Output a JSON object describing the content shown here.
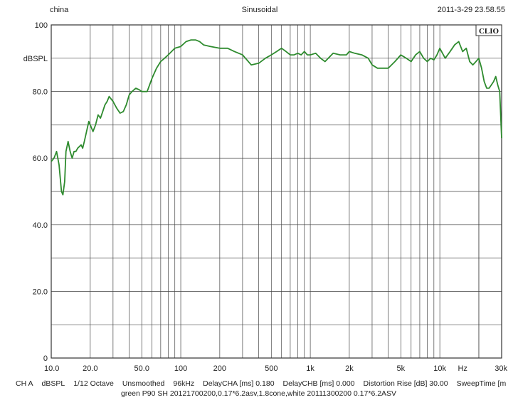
{
  "header": {
    "left": "china",
    "center": "Sinusoidal",
    "right": "2011-3-29 23.58.55"
  },
  "brand_label": "CLIO",
  "footer": {
    "settings": [
      "CH A",
      "dBSPL",
      "1/12 Octave",
      "Unsmoothed",
      "96kHz",
      "DelayCHA [ms] 0.180",
      "DelayCHB [ms] 0.000",
      "Distortion Rise [dB] 30.00",
      "SweepTime [m"
    ],
    "legend": "green P90 SH 20121700200,0.17*6.2asv,1.8cone,white 20111300200 0.17*6.2ASV"
  },
  "colors": {
    "curve": "#2e8b2e",
    "grid": "#444444",
    "background": "#ffffff"
  },
  "chart_data": {
    "type": "line",
    "title": "",
    "xlabel": "",
    "ylabel": "dBSPL",
    "xscale": "log",
    "xlim": [
      10,
      30000
    ],
    "ylim": [
      0,
      100
    ],
    "grid": true,
    "x_tick_labels": [
      "10.0",
      "20.0",
      "50.0",
      "100",
      "200",
      "500",
      "1k",
      "2k",
      "5k",
      "10k",
      "Hz",
      "30k"
    ],
    "y_tick_labels": [
      "100",
      "dBSPL",
      "80.0",
      "60.0",
      "40.0",
      "20.0",
      "0"
    ],
    "series": [
      {
        "x": [
          10,
          10.5,
          11,
          11.5,
          12,
          12.3,
          12.7,
          13,
          13.5,
          14,
          14.5,
          15,
          15.5,
          16,
          17,
          17.5,
          18,
          19,
          19.5,
          20,
          21,
          22,
          23,
          24,
          25,
          26,
          27,
          28,
          30,
          32,
          34,
          36,
          38,
          40,
          42,
          45,
          48,
          50,
          55,
          60,
          65,
          70,
          75,
          80,
          90,
          100,
          110,
          120,
          130,
          140,
          150,
          170,
          200,
          230,
          260,
          300,
          350,
          400,
          450,
          500,
          550,
          600,
          650,
          700,
          750,
          800,
          850,
          900,
          950,
          1000,
          1100,
          1200,
          1300,
          1500,
          1700,
          1900,
          2000,
          2200,
          2500,
          2800,
          3000,
          3300,
          3600,
          4000,
          4500,
          5000,
          5500,
          6000,
          6500,
          7000,
          7500,
          8000,
          8500,
          9000,
          9500,
          10000,
          11000,
          12000,
          13000,
          14000,
          15000,
          16000,
          17000,
          18000,
          19000,
          20000,
          21000,
          22000,
          23000,
          24000,
          25000,
          26000,
          27000,
          28000,
          29000,
          30000
        ],
        "y": [
          59,
          60,
          62,
          58,
          50,
          49,
          53,
          62,
          65,
          62,
          60,
          62,
          62,
          63,
          64,
          63,
          65,
          69,
          71,
          70,
          68,
          70,
          73,
          72,
          74,
          76,
          77,
          78.5,
          77,
          75,
          73.5,
          74,
          76,
          79,
          80,
          81,
          80.5,
          80,
          80,
          84,
          87,
          89,
          90,
          91,
          93,
          93.5,
          95,
          95.5,
          95.5,
          95,
          94,
          93.5,
          93,
          93,
          92,
          91,
          88,
          88.5,
          90,
          91,
          92,
          93,
          92,
          91,
          91,
          91.5,
          91,
          92,
          91,
          91,
          91.5,
          90,
          89,
          91.5,
          91,
          91,
          92,
          91.5,
          91,
          90,
          88,
          87,
          87,
          87,
          89,
          91,
          90,
          89,
          91,
          92,
          90,
          89,
          90,
          89.5,
          91,
          93,
          90,
          92,
          94,
          95,
          92,
          93,
          89,
          88,
          89,
          90,
          87,
          83,
          81,
          81,
          82,
          83,
          84.5,
          82,
          80,
          66
        ]
      }
    ]
  }
}
